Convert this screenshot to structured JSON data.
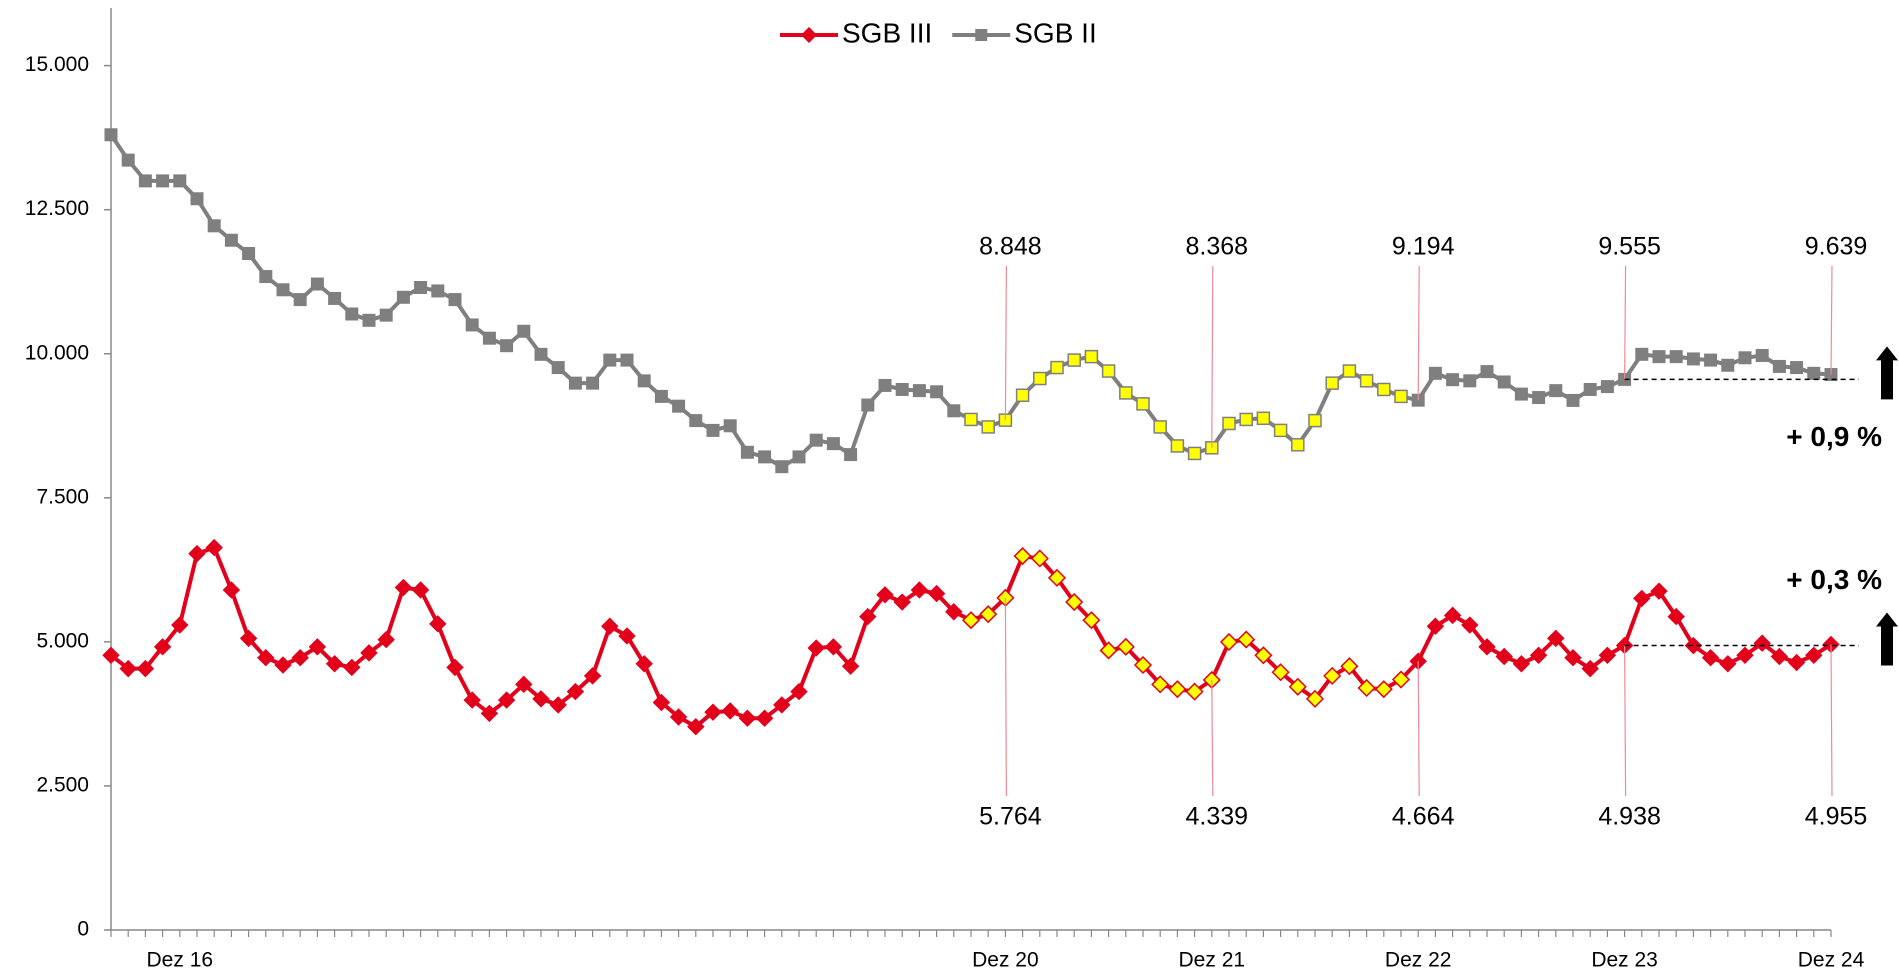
{
  "chart_data": {
    "type": "line",
    "categories": [
      null,
      null,
      null,
      null,
      "Dez 16",
      null,
      null,
      null,
      null,
      null,
      null,
      null,
      null,
      null,
      null,
      null,
      null,
      null,
      null,
      null,
      null,
      null,
      null,
      null,
      null,
      null,
      null,
      null,
      null,
      null,
      null,
      null,
      null,
      null,
      null,
      null,
      null,
      null,
      null,
      null,
      null,
      null,
      null,
      null,
      null,
      null,
      null,
      null,
      null,
      null,
      null,
      null,
      "Dez 20",
      null,
      null,
      null,
      null,
      null,
      null,
      null,
      null,
      null,
      null,
      null,
      "Dez 21",
      null,
      null,
      null,
      null,
      null,
      null,
      null,
      null,
      null,
      null,
      null,
      "Dez 22",
      null,
      null,
      null,
      null,
      null,
      null,
      null,
      null,
      null,
      null,
      null,
      "Dez 23",
      null,
      null,
      null,
      null,
      null,
      null,
      null,
      null,
      null,
      null,
      null,
      "Dez 24"
    ],
    "series": [
      {
        "name": "SGB III",
        "color": "#e2001a",
        "marker": "diamond",
        "values": [
          4767,
          4536,
          4536,
          4914,
          5292,
          6531,
          6636,
          5901,
          5061,
          4725,
          4599,
          4725,
          4914,
          4620,
          4557,
          4809,
          5040,
          5943,
          5901,
          5313,
          4557,
          3990,
          3759,
          3990,
          4263,
          4011,
          3906,
          4137,
          4410,
          5271,
          5103,
          4620,
          3948,
          3696,
          3528,
          3780,
          3801,
          3675,
          3675,
          3906,
          4137,
          4893,
          4914,
          4578,
          5439,
          5817,
          5691,
          5901,
          5838,
          5523,
          5376,
          5481,
          5764,
          6489,
          6447,
          6111,
          5691,
          5376,
          4851,
          4914,
          4599,
          4263,
          4179,
          4137,
          4339,
          4998,
          5040,
          4767,
          4473,
          4221,
          4011,
          4410,
          4578,
          4200,
          4179,
          4347,
          4664,
          5271,
          5460,
          5292,
          4914,
          4746,
          4620,
          4767,
          5061,
          4725,
          4536,
          4767,
          4938,
          5754,
          5880,
          5439,
          4935,
          4725,
          4620,
          4767,
          4977,
          4746,
          4641,
          4767,
          4955
        ],
        "value_labels": [
          null,
          null,
          null,
          null,
          null,
          null,
          null,
          null,
          null,
          null,
          null,
          null,
          null,
          null,
          null,
          null,
          null,
          null,
          null,
          null,
          null,
          null,
          null,
          null,
          null,
          null,
          null,
          null,
          null,
          null,
          null,
          null,
          null,
          null,
          null,
          null,
          null,
          null,
          null,
          null,
          null,
          null,
          null,
          null,
          null,
          null,
          null,
          null,
          null,
          null,
          null,
          null,
          "5.764",
          null,
          null,
          null,
          null,
          null,
          null,
          null,
          null,
          null,
          null,
          null,
          "4.339",
          null,
          null,
          null,
          null,
          null,
          null,
          null,
          null,
          null,
          null,
          null,
          "4.664",
          null,
          null,
          null,
          null,
          null,
          null,
          null,
          null,
          null,
          null,
          null,
          "4.938",
          null,
          null,
          null,
          null,
          null,
          null,
          null,
          null,
          null,
          null,
          null,
          "4.955"
        ]
      },
      {
        "name": "SGB II",
        "color": "#7f7f7f",
        "marker": "square",
        "values": [
          13800,
          13360,
          13000,
          13000,
          13000,
          12690,
          12220,
          11970,
          11740,
          11340,
          11110,
          10940,
          11210,
          10960,
          10690,
          10580,
          10670,
          10980,
          11150,
          11090,
          10940,
          10500,
          10270,
          10140,
          10390,
          9990,
          9760,
          9490,
          9490,
          9890,
          9890,
          9530,
          9260,
          9090,
          8840,
          8670,
          8750,
          8290,
          8210,
          8040,
          8210,
          8500,
          8440,
          8250,
          9110,
          9450,
          9380,
          9360,
          9340,
          9010,
          8860,
          8730,
          8848,
          9280,
          9570,
          9760,
          9890,
          9950,
          9700,
          9320,
          9130,
          8730,
          8400,
          8270,
          8368,
          8790,
          8860,
          8880,
          8670,
          8420,
          8840,
          9490,
          9700,
          9530,
          9380,
          9260,
          9194,
          9660,
          9550,
          9530,
          9690,
          9510,
          9300,
          9240,
          9360,
          9190,
          9380,
          9430,
          9555,
          9990,
          9950,
          9950,
          9910,
          9890,
          9800,
          9930,
          9970,
          9780,
          9760,
          9660,
          9639
        ],
        "value_labels": [
          null,
          null,
          null,
          null,
          null,
          null,
          null,
          null,
          null,
          null,
          null,
          null,
          null,
          null,
          null,
          null,
          null,
          null,
          null,
          null,
          null,
          null,
          null,
          null,
          null,
          null,
          null,
          null,
          null,
          null,
          null,
          null,
          null,
          null,
          null,
          null,
          null,
          null,
          null,
          null,
          null,
          null,
          null,
          null,
          null,
          null,
          null,
          null,
          null,
          null,
          null,
          null,
          "8.848",
          null,
          null,
          null,
          null,
          null,
          null,
          null,
          null,
          null,
          null,
          null,
          "8.368",
          null,
          null,
          null,
          null,
          null,
          null,
          null,
          null,
          null,
          null,
          null,
          "9.194",
          null,
          null,
          null,
          null,
          null,
          null,
          null,
          null,
          null,
          null,
          null,
          "9.555",
          null,
          null,
          null,
          null,
          null,
          null,
          null,
          null,
          null,
          null,
          null,
          "9.639"
        ]
      }
    ],
    "highlight": {
      "color": "#ffff00",
      "from": 50,
      "to": 75
    },
    "annotations": [
      "+ 0,9 %",
      "+ 0,3 %"
    ],
    "ylim": [
      0,
      16000
    ],
    "yticks": [
      0,
      {
        "value": 2500,
        "label": "2.500"
      },
      {
        "value": 5000,
        "label": "5.000"
      },
      {
        "value": 7500,
        "label": "7.500"
      },
      {
        "value": 10000,
        "label": "10.000"
      },
      {
        "value": 12500,
        "label": "12.500"
      },
      {
        "value": 15000,
        "label": "15.000"
      }
    ],
    "grid": false,
    "legend": "top"
  }
}
